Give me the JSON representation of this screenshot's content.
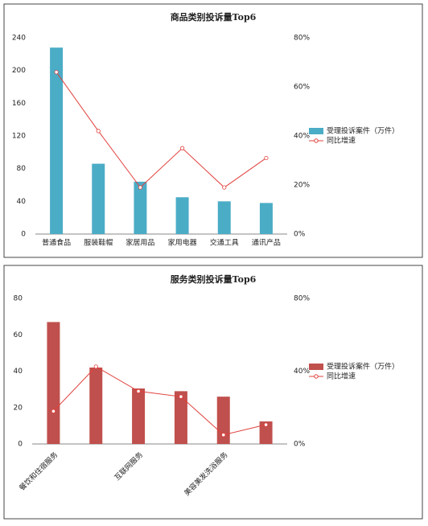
{
  "chart_data": [
    {
      "type": "bar",
      "title": "商品类别投诉量Top6",
      "categories": [
        "普通食品",
        "服装鞋帽",
        "家居用品",
        "家用电器",
        "交通工具",
        "通讯产品"
      ],
      "series": [
        {
          "name": "受理投诉案件（万件）",
          "type": "bar",
          "color": "#4bacc6",
          "values": [
            228,
            86,
            64,
            45,
            40,
            38
          ]
        },
        {
          "name": "同比增速",
          "type": "line",
          "axis": "y2",
          "color": "#e0403c",
          "values": [
            66,
            42,
            19,
            35,
            19,
            31
          ]
        }
      ],
      "ylim": [
        0,
        240
      ],
      "yticks": [
        0,
        40,
        80,
        120,
        160,
        200,
        240
      ],
      "y2lim": [
        0,
        80
      ],
      "y2ticks": [
        {
          "value": 0,
          "label": "0%"
        },
        {
          "value": 20,
          "label": "20%"
        },
        {
          "value": 40,
          "label": "40%"
        },
        {
          "value": 60,
          "label": "60%"
        },
        {
          "value": 80,
          "label": "80%"
        }
      ],
      "legend": "right"
    },
    {
      "type": "bar",
      "title": "服务类别投诉量Top6",
      "categories": [
        "餐饮和住宿服务",
        null,
        "互联网服务",
        null,
        "美容美发洗浴服务",
        null
      ],
      "series": [
        {
          "name": "受理投诉案件（万件）",
          "type": "bar",
          "color": "#c0504d",
          "values": [
            67,
            42,
            30.5,
            29,
            26,
            12.4
          ]
        },
        {
          "name": "同比增速",
          "type": "line",
          "axis": "y2",
          "color": "#e0403c",
          "values": [
            18,
            42.5,
            29,
            26,
            5,
            10.6
          ]
        }
      ],
      "ylim": [
        0,
        80
      ],
      "yticks": [
        0,
        20,
        40,
        60,
        80
      ],
      "y2lim": [
        0,
        80
      ],
      "y2ticks": [
        {
          "value": 0,
          "label": "0%"
        },
        {
          "value": 40,
          "label": "40%"
        },
        {
          "value": 80,
          "label": "80%"
        }
      ],
      "legend": "right"
    }
  ]
}
